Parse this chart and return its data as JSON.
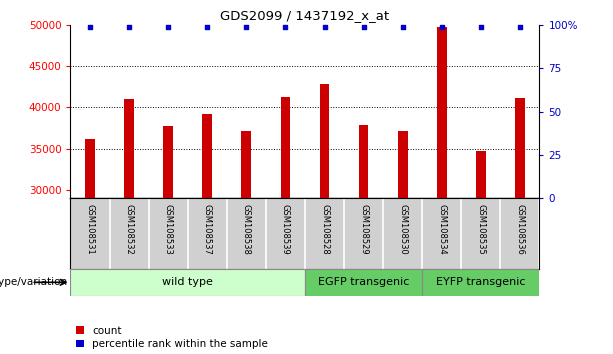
{
  "title": "GDS2099 / 1437192_x_at",
  "samples": [
    "GSM108531",
    "GSM108532",
    "GSM108533",
    "GSM108537",
    "GSM108538",
    "GSM108539",
    "GSM108528",
    "GSM108529",
    "GSM108530",
    "GSM108534",
    "GSM108535",
    "GSM108536"
  ],
  "counts": [
    36200,
    41000,
    37800,
    39200,
    37100,
    41200,
    42800,
    37900,
    37100,
    49700,
    34700,
    41100
  ],
  "percentiles": [
    99,
    99,
    99,
    99,
    99,
    99,
    99,
    99,
    99,
    99,
    99,
    99
  ],
  "bar_color": "#cc0000",
  "dot_color": "#0000cc",
  "ylim_left": [
    29000,
    50000
  ],
  "ylim_right": [
    0,
    100
  ],
  "yticks_left": [
    30000,
    35000,
    40000,
    45000,
    50000
  ],
  "yticks_right": [
    0,
    25,
    50,
    75,
    100
  ],
  "groups": [
    {
      "label": "wild type",
      "start": 0,
      "end": 6,
      "color": "#ccffcc"
    },
    {
      "label": "EGFP transgenic",
      "start": 6,
      "end": 9,
      "color": "#66cc66"
    },
    {
      "label": "EYFP transgenic",
      "start": 9,
      "end": 12,
      "color": "#66cc66"
    }
  ],
  "group_label": "genotype/variation",
  "legend_count_label": "count",
  "legend_percentile_label": "percentile rank within the sample",
  "bar_bottom": 29000,
  "label_area_color": "#d0d0d0",
  "bar_width": 0.25
}
